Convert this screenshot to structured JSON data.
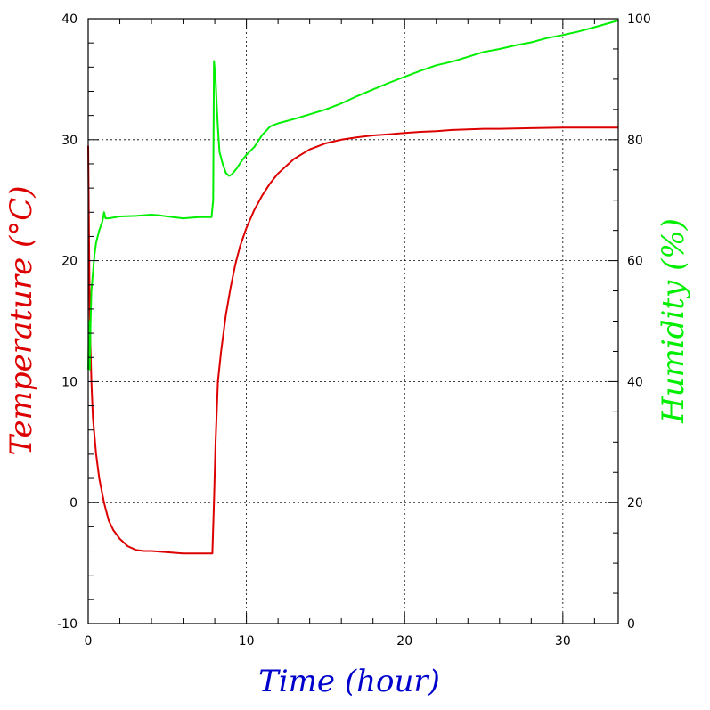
{
  "chart_data": {
    "type": "line",
    "xlabel": "Time (hour)",
    "ylabel": "Temperature (°C)",
    "y2label": "Humidity (%)",
    "xlim": [
      0,
      33.5
    ],
    "ylim": [
      -10,
      40
    ],
    "y2lim": [
      0,
      100
    ],
    "x_ticks": [
      0,
      10,
      20,
      30
    ],
    "y_ticks": [
      -10,
      0,
      10,
      20,
      30,
      40
    ],
    "y2_ticks": [
      0,
      20,
      40,
      60,
      80,
      100
    ],
    "grid": true,
    "colors": {
      "temperature": "#dd0000",
      "humidity": "#00ee00",
      "xlabel": "#0000cc",
      "ylabel": "#dd0000",
      "y2label": "#00ee00",
      "grid": "#000000"
    },
    "series": [
      {
        "key": "temperature",
        "axis": "left",
        "x": [
          0,
          0.05,
          0.1,
          0.2,
          0.3,
          0.5,
          0.7,
          1.0,
          1.3,
          1.6,
          2.0,
          2.5,
          3.0,
          3.5,
          4.0,
          5.0,
          6.0,
          7.0,
          7.7,
          7.85,
          7.95,
          8.05,
          8.2,
          8.4,
          8.7,
          9.0,
          9.3,
          9.6,
          10.0,
          10.5,
          11.0,
          11.5,
          12.0,
          13.0,
          14.0,
          15.0,
          16.0,
          17.0,
          18.0,
          19.0,
          20.0,
          21.0,
          22.0,
          23.0,
          24.0,
          25.0,
          26.0,
          28.0,
          30.0,
          33.5
        ],
        "y": [
          29.5,
          22,
          15,
          10,
          7,
          4,
          2,
          0,
          -1.5,
          -2.3,
          -3.0,
          -3.6,
          -3.9,
          -4.0,
          -4.0,
          -4.1,
          -4.2,
          -4.2,
          -4.2,
          -4.2,
          0,
          5,
          10,
          12.5,
          15.5,
          17.8,
          19.7,
          21.2,
          22.7,
          24.2,
          25.4,
          26.4,
          27.2,
          28.4,
          29.2,
          29.7,
          30.0,
          30.2,
          30.35,
          30.45,
          30.55,
          30.65,
          30.7,
          30.8,
          30.85,
          30.9,
          30.9,
          30.95,
          31.0,
          31.0
        ]
      },
      {
        "key": "humidity",
        "axis": "right",
        "x": [
          0,
          0.05,
          0.1,
          0.15,
          0.2,
          0.3,
          0.4,
          0.5,
          0.7,
          0.9,
          1.0,
          1.1,
          1.3,
          2.0,
          3.0,
          4.0,
          4.5,
          5.0,
          6.0,
          7.0,
          7.8,
          7.9,
          7.95,
          8.05,
          8.1,
          8.2,
          8.3,
          8.5,
          8.7,
          8.9,
          9.1,
          9.4,
          9.7,
          10.0,
          10.5,
          11.0,
          11.5,
          12.0,
          13.0,
          14.0,
          15.0,
          16.0,
          17.0,
          18.0,
          19.0,
          20.0,
          21.0,
          22.0,
          23.0,
          24.0,
          25.0,
          26.0,
          27.0,
          28.0,
          29.0,
          30.0,
          31.0,
          32.0,
          33.5
        ],
        "y": [
          42,
          50,
          42,
          50,
          55,
          58,
          61,
          63,
          65,
          66.5,
          68,
          67,
          67,
          67.3,
          67.4,
          67.6,
          67.5,
          67.3,
          67.0,
          67.2,
          67.2,
          70,
          93,
          90,
          87,
          82,
          78,
          76,
          74.5,
          74,
          74.3,
          75.3,
          76.5,
          77.5,
          78.8,
          80.8,
          82.2,
          82.7,
          83.4,
          84.2,
          85.0,
          86.0,
          87.2,
          88.3,
          89.4,
          90.4,
          91.4,
          92.3,
          92.9,
          93.7,
          94.5,
          95.0,
          95.6,
          96.1,
          96.8,
          97.3,
          97.9,
          98.6,
          99.7
        ]
      }
    ]
  }
}
